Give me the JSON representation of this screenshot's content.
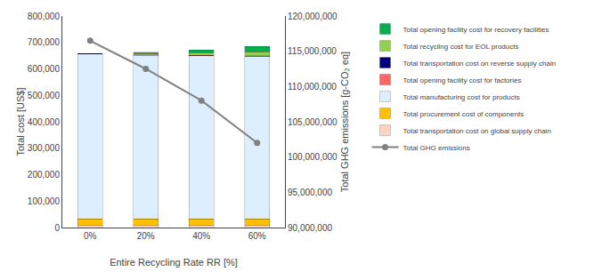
{
  "chart_data": {
    "type": "bar",
    "stacked": true,
    "grid": false,
    "categories": [
      "0%",
      "20%",
      "40%",
      "60%"
    ],
    "xlabel": "Entire Recycling Rate RR [%]",
    "ylabel": "Total cost [US$]",
    "y2label": "Total GHG emissions [g-CO₂ eq]",
    "ylim": [
      0,
      800000
    ],
    "yticks": [
      0,
      {
        "value": 100000,
        "label": "100,000"
      },
      {
        "value": 200000,
        "label": "200,000"
      },
      {
        "value": 300000,
        "label": "300,000"
      },
      {
        "value": 400000,
        "label": "400,000"
      },
      {
        "value": 500000,
        "label": "500,000"
      },
      {
        "value": 600000,
        "label": "600,000"
      },
      {
        "value": 700000,
        "label": "700,000"
      },
      {
        "value": 800000,
        "label": "800,000"
      }
    ],
    "y2lim": [
      90000000,
      120000000
    ],
    "y2ticks": [
      {
        "value": 90000000,
        "label": "90,000,000"
      },
      {
        "value": 95000000,
        "label": "95,000,000"
      },
      {
        "value": 100000000,
        "label": "100,000,000"
      },
      {
        "value": 105000000,
        "label": "105,000,000"
      },
      {
        "value": 110000000,
        "label": "110,000,000"
      },
      {
        "value": 115000000,
        "label": "115,000,000"
      },
      {
        "value": 120000000,
        "label": "120,000,000"
      }
    ],
    "series": [
      {
        "name": "Total transportation cost on global supply chain",
        "color": "#FAD4C0",
        "values": [
          7000,
          7000,
          7000,
          7000
        ]
      },
      {
        "name": "Total procurement cost of components",
        "color": "#FFC000",
        "values": [
          26000,
          26000,
          26000,
          26000
        ]
      },
      {
        "name": "Total manufacturing cost for products",
        "color": "#DDEEFF",
        "values": [
          624000,
          619000,
          617000,
          615000
        ]
      },
      {
        "name": "Total opening facility cost for factories",
        "color": "#FF6666",
        "values": [
          0,
          500,
          500,
          500
        ]
      },
      {
        "name": "Total transportation cost on reverse supply chain",
        "color": "#000080",
        "values": [
          1000,
          1000,
          1000,
          1000
        ]
      },
      {
        "name": "Total recycling cost for EOL products",
        "color": "#92D050",
        "values": [
          0,
          5000,
          10000,
          16000
        ]
      },
      {
        "name": "Total opening facility cost for recovery facilities",
        "color": "#00B050",
        "values": [
          0,
          5000,
          10000,
          20000
        ]
      },
      {
        "name": "Total GHG emissions",
        "type": "line",
        "axis": "y2",
        "color": "#808080",
        "marker": "circle",
        "values": [
          116500000,
          112500000,
          108000000,
          102000000
        ]
      }
    ]
  }
}
